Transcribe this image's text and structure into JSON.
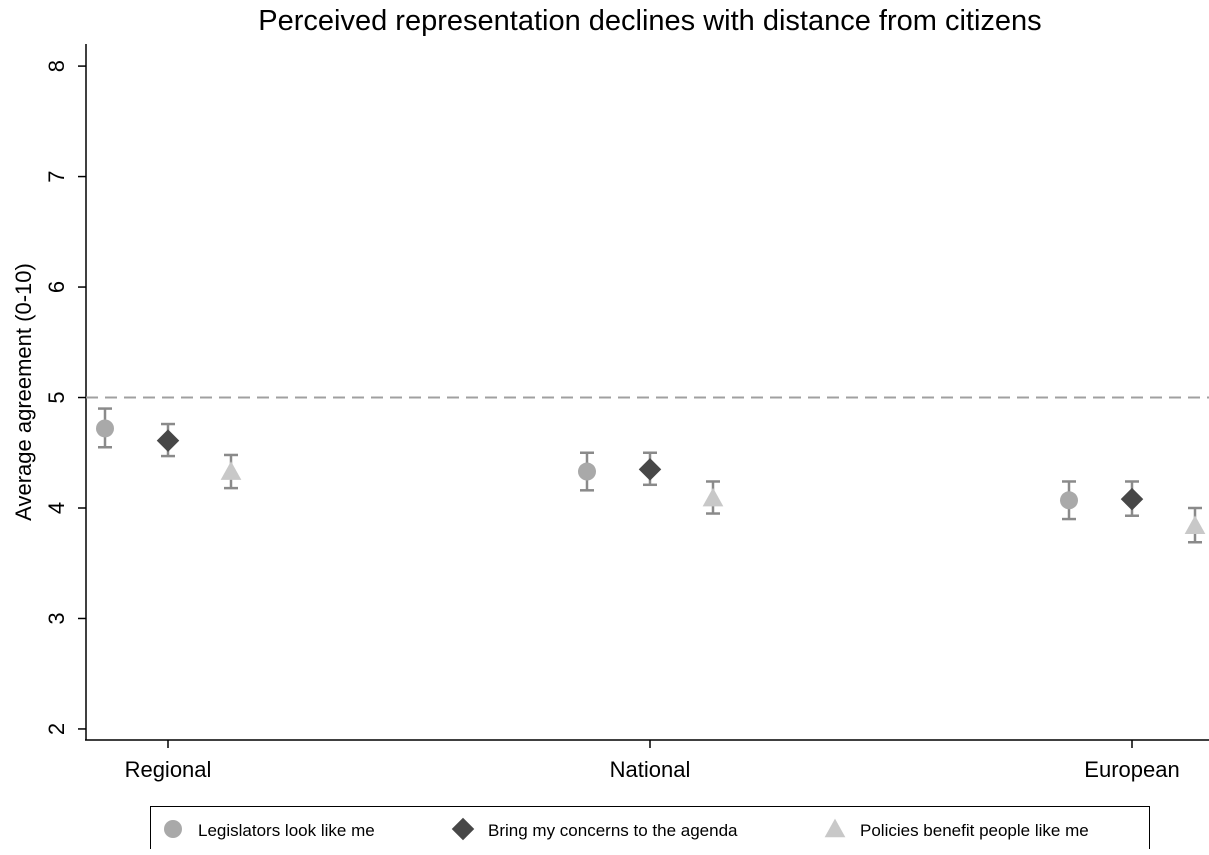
{
  "chart_data": {
    "type": "scatter",
    "title": "Perceived representation declines with distance from citizens",
    "xlabel": "",
    "ylabel": "Average agreement (0-10)",
    "categories": [
      "Regional",
      "National",
      "European"
    ],
    "ylim": [
      1.9,
      8.2
    ],
    "yticks": [
      "2",
      "3",
      "4",
      "5",
      "6",
      "7",
      "8"
    ],
    "reference_line": {
      "y": 5,
      "style": "dashed"
    },
    "legend_position": "bottom",
    "grid": false,
    "series": [
      {
        "name": "Legislators look like me",
        "marker": "circle",
        "color": "#a9a9a9",
        "values": [
          4.72,
          4.33,
          4.07
        ],
        "ci_low": [
          4.55,
          4.16,
          3.9
        ],
        "ci_high": [
          4.9,
          4.5,
          4.24
        ]
      },
      {
        "name": "Bring my concerns to the agenda",
        "marker": "diamond",
        "color": "#474747",
        "values": [
          4.61,
          4.35,
          4.08
        ],
        "ci_low": [
          4.47,
          4.21,
          3.93
        ],
        "ci_high": [
          4.76,
          4.5,
          4.24
        ]
      },
      {
        "name": "Policies benefit people like me",
        "marker": "triangle",
        "color": "#c8c8c8",
        "values": [
          4.33,
          4.09,
          3.84
        ],
        "ci_low": [
          4.18,
          3.95,
          3.69
        ],
        "ci_high": [
          4.48,
          4.24,
          4.0
        ]
      }
    ]
  }
}
